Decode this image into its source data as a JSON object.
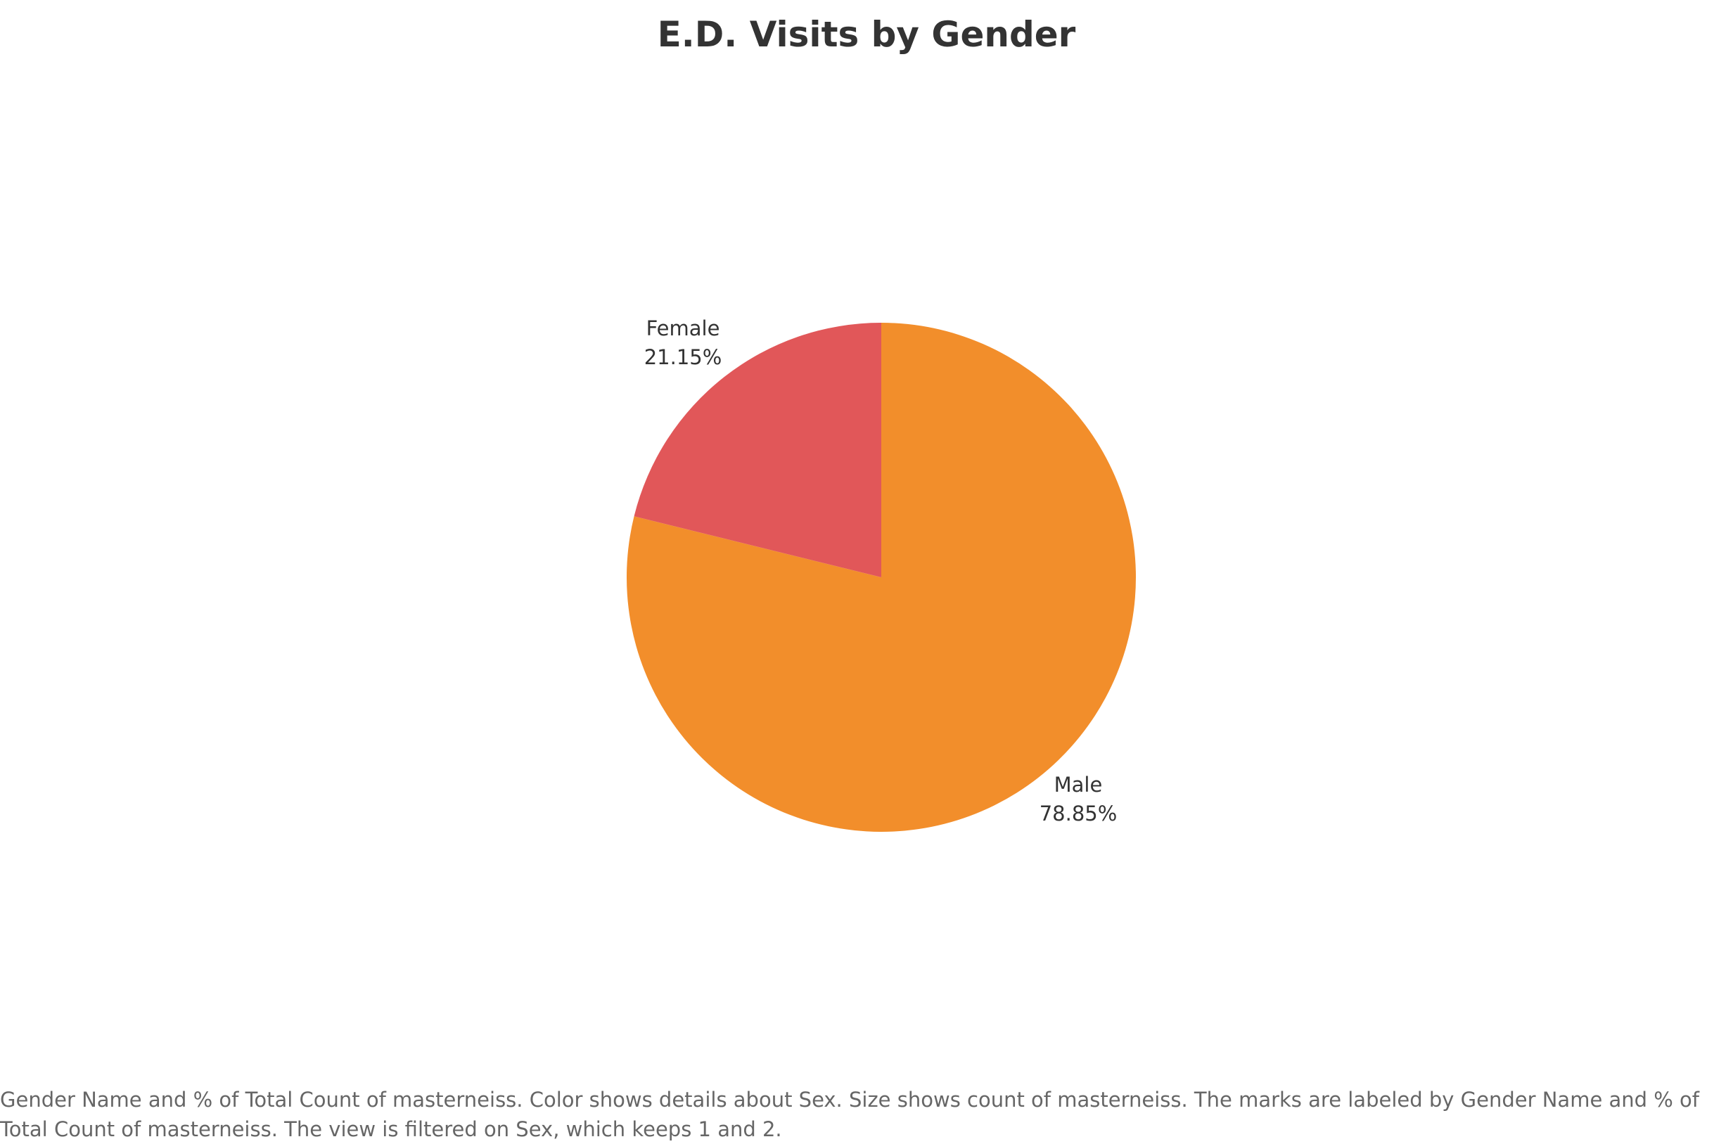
{
  "chart_data": {
    "type": "pie",
    "title": "E.D. Visits by Gender",
    "categories": [
      "Female",
      "Male"
    ],
    "values": [
      21.15,
      78.85
    ],
    "value_unit": "%",
    "labels": [
      {
        "name": "Female",
        "value_text": "21.15%"
      },
      {
        "name": "Male",
        "value_text": "78.85%"
      }
    ],
    "colors": [
      "#e15759",
      "#f28e2b"
    ],
    "start_angle": "12 o'clock",
    "direction": "clockwise",
    "order": [
      "Male",
      "Female"
    ]
  },
  "caption": "Gender Name and % of Total Count of masterneiss.  Color shows details about Sex.  Size shows count of masterneiss.  The marks are labeled by Gender Name and % of Total Count of masterneiss. The view is filtered on Sex, which keeps 1 and 2."
}
